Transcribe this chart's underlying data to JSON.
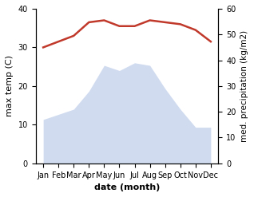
{
  "months": [
    "Jan",
    "Feb",
    "Mar",
    "Apr",
    "May",
    "Jun",
    "Jul",
    "Aug",
    "Sep",
    "Oct",
    "Nov",
    "Dec"
  ],
  "temp": [
    30.0,
    31.5,
    33.0,
    36.5,
    37.0,
    35.5,
    35.5,
    37.0,
    36.5,
    36.0,
    34.5,
    31.5
  ],
  "precip": [
    17,
    19,
    21,
    28,
    38,
    36,
    39,
    38,
    29,
    21,
    14,
    14
  ],
  "xlabel": "date (month)",
  "ylabel_left": "max temp (C)",
  "ylabel_right": "med. precipitation (kg/m2)",
  "ylim_left": [
    0,
    40
  ],
  "ylim_right": [
    0,
    60
  ],
  "yticks_left": [
    0,
    10,
    20,
    30,
    40
  ],
  "yticks_right": [
    0,
    10,
    20,
    30,
    40,
    50,
    60
  ],
  "temp_color": "#c0392b",
  "precip_color": "#b8c9e8",
  "precip_edge_color": "#8aaad4",
  "background_color": "#ffffff",
  "temp_linewidth": 1.8,
  "precip_alpha": 0.65
}
